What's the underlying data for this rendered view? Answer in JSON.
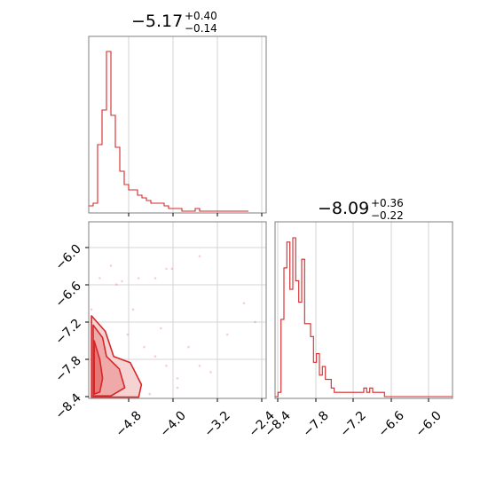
{
  "colors": {
    "series": "#d62728",
    "contour_fill_outer": "#f6d3d3",
    "contour_fill_mid": "#f0a9a9",
    "contour_fill_inner": "#e77878",
    "grid": "#c8c8c8",
    "frame": "#7f7f7f"
  },
  "chart_data": [
    {
      "type": "histogram",
      "panel": "top-left",
      "title": {
        "value": "−5.17",
        "upper": "+0.40",
        "lower": "−0.14"
      },
      "xlim": [
        -5.5,
        -2.3
      ],
      "xticks": [
        -4.8,
        -4.0,
        -3.2,
        -2.4
      ],
      "grid": true,
      "counts": [
        2,
        3,
        25,
        38,
        60,
        36,
        24,
        15,
        10,
        8,
        8,
        6,
        5,
        4,
        3,
        3,
        3,
        2,
        1,
        1,
        1,
        0,
        0,
        0,
        1,
        0,
        0,
        0,
        0,
        0,
        0,
        0,
        0,
        0,
        0,
        0
      ],
      "bin_start": -5.5,
      "bin_width": 0.08
    },
    {
      "type": "contour",
      "panel": "bottom-left",
      "xlim": [
        -5.5,
        -2.3
      ],
      "ylim": [
        -8.42,
        -5.6
      ],
      "xticks": [
        "−4.8",
        "−4.0",
        "−3.2",
        "−2.4"
      ],
      "yticks": [
        "−6.0",
        "−6.6",
        "−7.2",
        "−7.8",
        "−8.4"
      ],
      "grid": true,
      "levels": [
        {
          "name": "outer",
          "points": [
            [
              -5.45,
              -7.1
            ],
            [
              -5.2,
              -7.35
            ],
            [
              -5.05,
              -7.75
            ],
            [
              -4.75,
              -7.85
            ],
            [
              -4.55,
              -8.2
            ],
            [
              -4.6,
              -8.4
            ],
            [
              -5.45,
              -8.4
            ]
          ]
        },
        {
          "name": "mid",
          "points": [
            [
              -5.42,
              -7.25
            ],
            [
              -5.25,
              -7.45
            ],
            [
              -5.18,
              -7.75
            ],
            [
              -4.95,
              -7.95
            ],
            [
              -4.85,
              -8.25
            ],
            [
              -5.1,
              -8.38
            ],
            [
              -5.42,
              -8.38
            ]
          ]
        },
        {
          "name": "inner",
          "points": [
            [
              -5.4,
              -7.5
            ],
            [
              -5.3,
              -7.8
            ],
            [
              -5.25,
              -8.1
            ],
            [
              -5.3,
              -8.32
            ],
            [
              -5.4,
              -8.35
            ]
          ]
        }
      ],
      "scatter": [
        [
          -5.3,
          -6.5
        ],
        [
          -5.1,
          -6.3
        ],
        [
          -5.0,
          -6.6
        ],
        [
          -4.9,
          -6.55
        ],
        [
          -4.6,
          -6.5
        ],
        [
          -4.3,
          -6.5
        ],
        [
          -4.1,
          -6.35
        ],
        [
          -4.0,
          -6.35
        ],
        [
          -3.5,
          -6.15
        ],
        [
          -2.7,
          -6.9
        ],
        [
          -3.0,
          -7.4
        ],
        [
          -2.5,
          -7.2
        ],
        [
          -4.8,
          -7.4
        ],
        [
          -4.5,
          -7.6
        ],
        [
          -4.3,
          -7.75
        ],
        [
          -4.1,
          -7.9
        ],
        [
          -3.9,
          -8.1
        ],
        [
          -4.7,
          -7.0
        ],
        [
          -4.2,
          -7.3
        ],
        [
          -3.7,
          -7.6
        ],
        [
          -3.5,
          -7.9
        ],
        [
          -3.3,
          -8.0
        ],
        [
          -5.45,
          -7.0
        ],
        [
          -4.6,
          -8.3
        ],
        [
          -4.4,
          -8.35
        ],
        [
          -3.9,
          -8.25
        ]
      ]
    },
    {
      "type": "histogram",
      "panel": "bottom-right",
      "title": {
        "value": "−8.09",
        "upper": "+0.36",
        "lower": "−0.22"
      },
      "xlim": [
        -8.42,
        -5.6
      ],
      "xticks": [
        "−8.4",
        "−7.8",
        "−7.2",
        "−6.6",
        "−6.0"
      ],
      "grid": true,
      "counts": [
        0,
        1,
        18,
        30,
        36,
        25,
        37,
        27,
        22,
        32,
        17,
        17,
        14,
        8,
        10,
        5,
        7,
        4,
        4,
        2,
        1,
        1,
        1,
        1,
        1,
        1,
        1,
        1,
        1,
        1,
        2,
        1,
        2,
        1,
        1,
        1,
        1,
        0,
        0,
        0,
        0,
        0,
        0,
        0,
        0,
        0,
        0,
        0,
        0,
        0,
        0,
        0,
        0,
        0,
        0,
        0,
        0,
        0,
        0,
        0
      ],
      "bin_start": -8.42,
      "bin_width": 0.047
    }
  ]
}
